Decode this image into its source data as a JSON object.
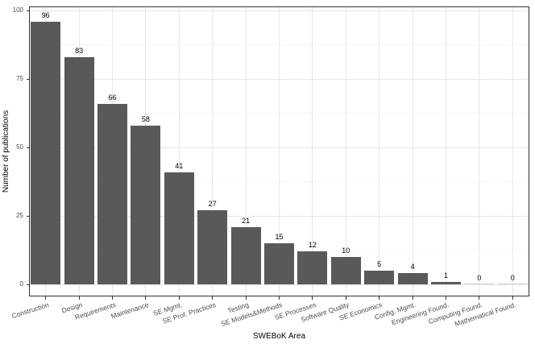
{
  "chart_data": {
    "type": "bar",
    "title": "",
    "xlabel": "SWEBoK Area",
    "ylabel": "Number of publications",
    "categories": [
      "Construction",
      "Design",
      "Requirements",
      "Maintenance",
      "SE Mgmt.",
      "SE Prof. Practices",
      "Testing",
      "SE Models&Methods",
      "SE Processes",
      "Software Quality",
      "SE Economics",
      "Config. Mgmt.",
      "Engineering Found.",
      "Computing Found.",
      "Mathematical Found."
    ],
    "values": [
      96,
      83,
      66,
      58,
      41,
      27,
      21,
      15,
      12,
      10,
      5,
      4,
      1,
      0,
      0
    ],
    "data_labels": [
      "96",
      "83",
      "66",
      "58",
      "41",
      "27",
      "21",
      "15",
      "12",
      "10",
      "5",
      "4",
      "1",
      "0",
      "0"
    ],
    "y_ticks": [
      "0",
      "25",
      "50",
      "75",
      "100"
    ],
    "y_tick_values": [
      0,
      25,
      50,
      75,
      100
    ],
    "ylim": [
      0,
      100
    ],
    "grid": "major-and-minor",
    "legend": "none",
    "bar_color": "#595959",
    "zero_bar_color": "#d0d0d0",
    "panel_border_color": "#333333",
    "axis_text_color": "#4d4d4d",
    "background": "#ffffff"
  }
}
